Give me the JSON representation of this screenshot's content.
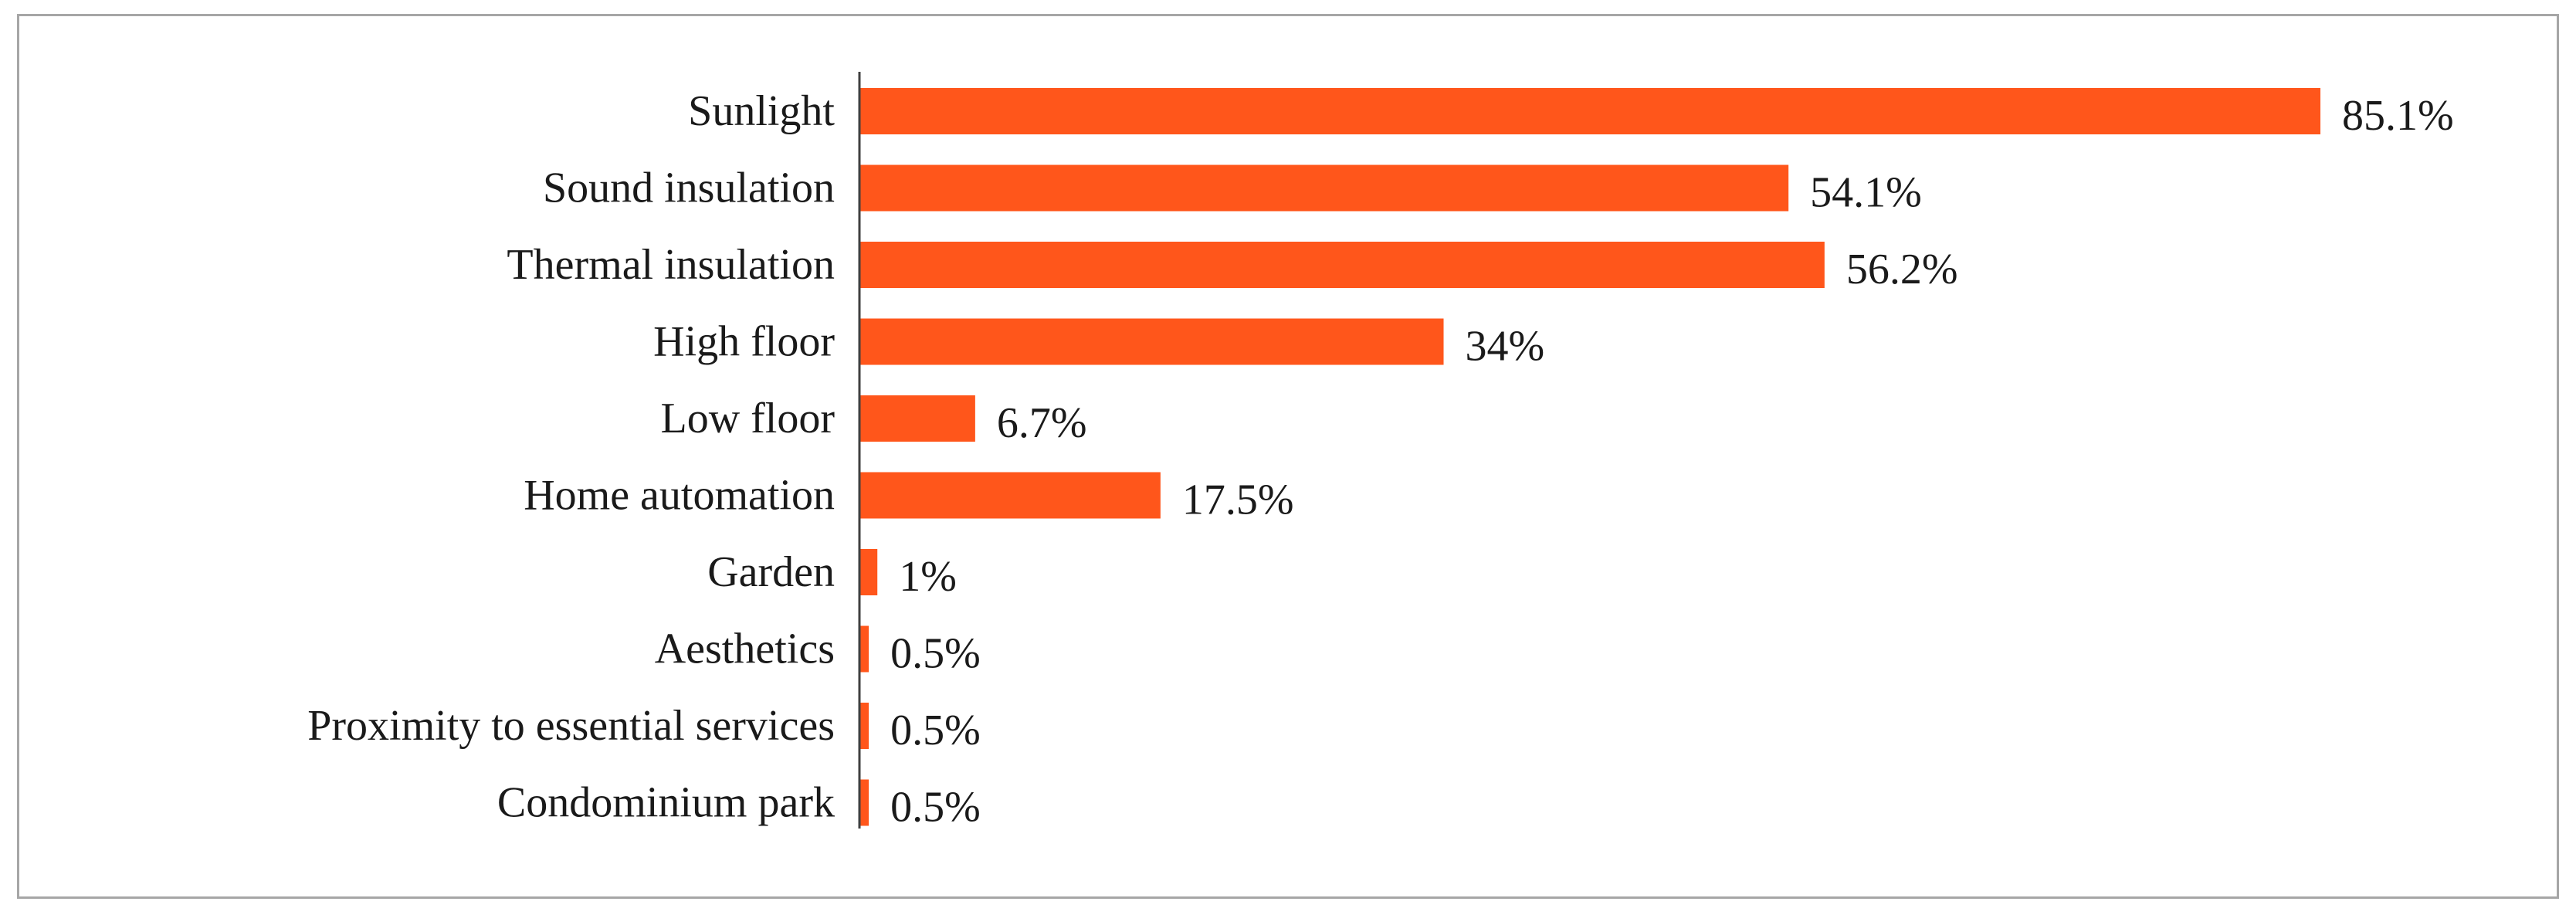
{
  "chart_data": {
    "type": "bar",
    "orientation": "horizontal",
    "categories": [
      "Sunlight",
      "Sound insulation",
      "Thermal insulation",
      "High floor",
      "Low floor",
      "Home automation",
      "Garden",
      "Aesthetics",
      "Proximity to essential services",
      "Condominium park"
    ],
    "values": [
      85.1,
      54.1,
      56.2,
      34,
      6.7,
      17.5,
      1,
      0.5,
      0.5,
      0.5
    ],
    "value_labels": [
      "85.1%",
      "54.1%",
      "56.2%",
      "34%",
      "6.7%",
      "17.5%",
      "1%",
      "0.5%",
      "0.5%",
      "0.5%"
    ],
    "title": "",
    "xlabel": "",
    "ylabel": "",
    "xlim": [
      0,
      85.1
    ],
    "grid": false,
    "legend": "none",
    "bar_color": "#ff561b",
    "axis_color": "#404040"
  }
}
